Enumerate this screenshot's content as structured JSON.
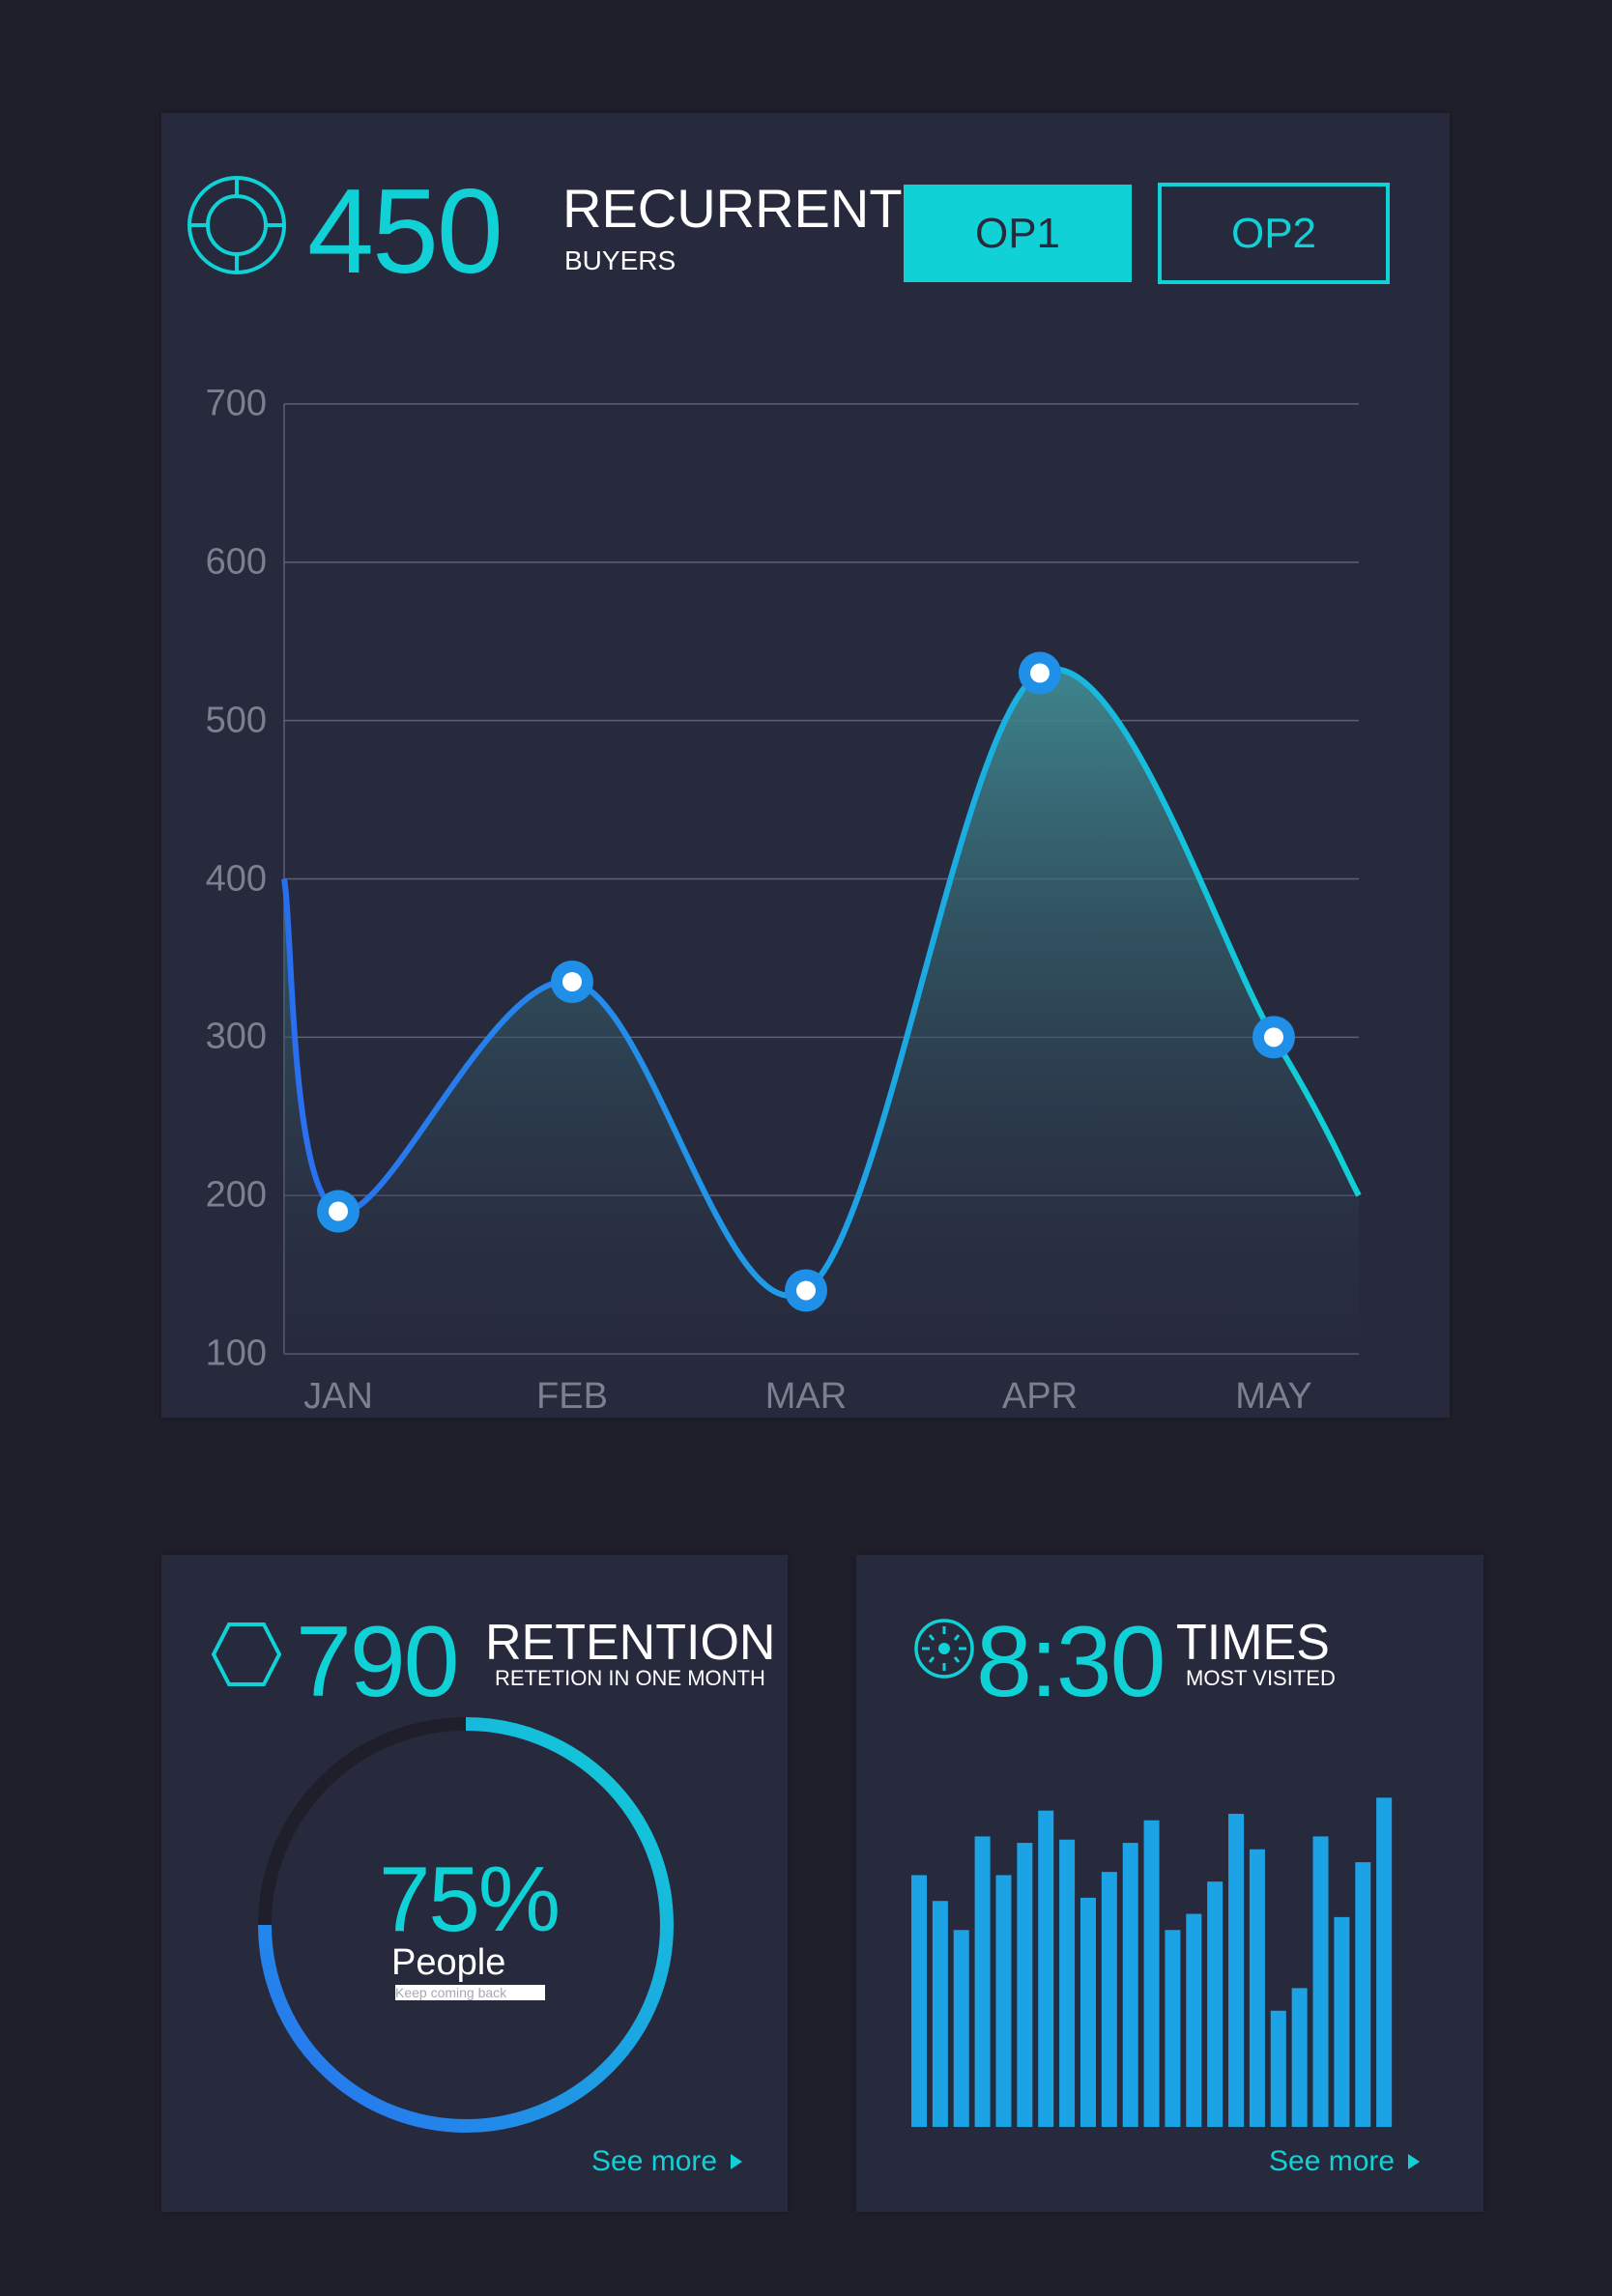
{
  "header": {
    "icon": "target-icon",
    "value": "450",
    "title": "RECURRENT",
    "subtitle": "BUYERS",
    "buttons": [
      {
        "label": "OP1",
        "active": true
      },
      {
        "label": "OP2",
        "active": false
      }
    ]
  },
  "colors": {
    "accent": "#10d1d6",
    "blue": "#2a6ef0",
    "card": "#272a3d",
    "background": "#1f1f2b",
    "track": "#1e1f2b"
  },
  "chart_data": [
    {
      "type": "area",
      "categories": [
        "JAN",
        "FEB",
        "MAR",
        "APR",
        "MAY"
      ],
      "values": [
        190,
        335,
        140,
        530,
        300
      ],
      "start_value": 400,
      "end_value": 200,
      "yticks": [
        "700",
        "600",
        "500",
        "400",
        "300",
        "200",
        "100"
      ],
      "ylim": [
        100,
        700
      ],
      "grid": true
    },
    {
      "type": "bar",
      "values": [
        78,
        70,
        61,
        90,
        78,
        88,
        98,
        89,
        71,
        79,
        88,
        95,
        61,
        66,
        76,
        97,
        86,
        36,
        43,
        90,
        65,
        82,
        102
      ]
    }
  ],
  "retention": {
    "icon": "hexagon-icon",
    "value": "790",
    "title": "RETENTION",
    "subtitle": "RETETION IN ONE MONTH",
    "percent": 75,
    "percent_label": "75%",
    "people_label": "People",
    "caption": "Keep coming back",
    "see_more": "See more"
  },
  "times": {
    "icon": "clock-dial-icon",
    "value": "8:30",
    "title": "TIMES",
    "subtitle": "MOST VISITED",
    "see_more": "See more"
  }
}
